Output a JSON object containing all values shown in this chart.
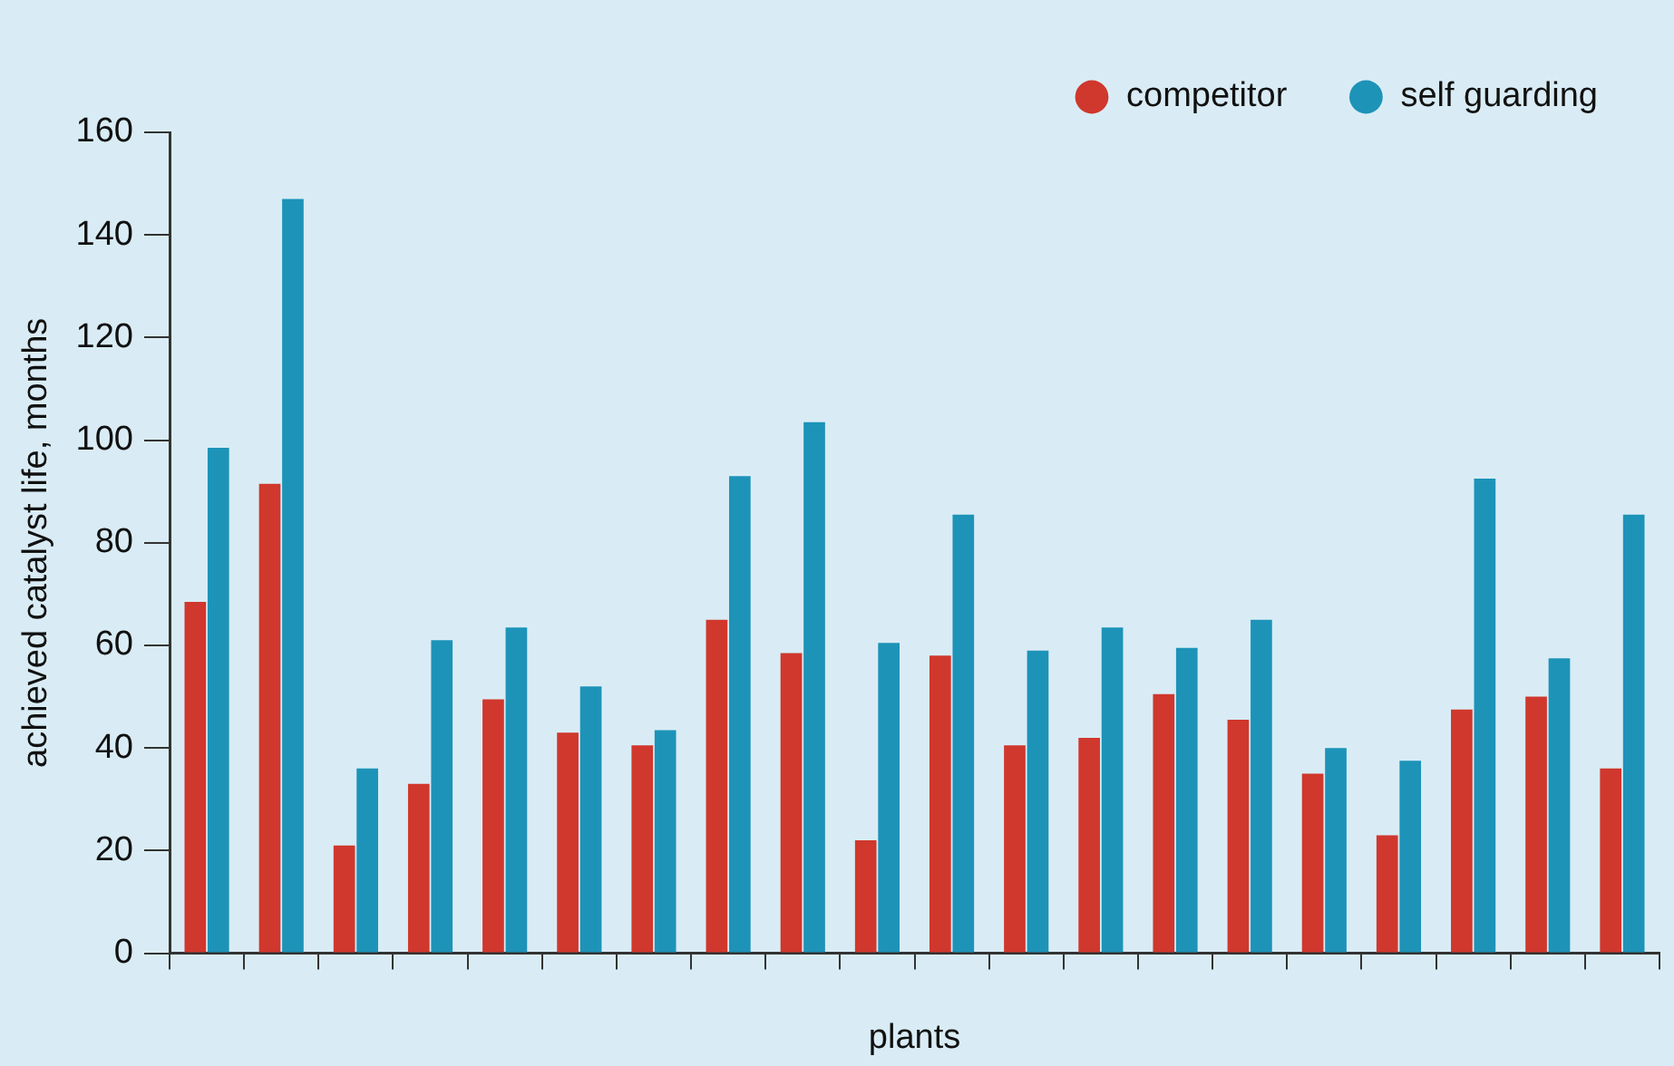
{
  "chart_data": {
    "type": "bar",
    "xlabel": "plants",
    "ylabel": "achieved catalyst life, months",
    "categories": [
      null,
      null,
      null,
      null,
      null,
      null,
      null,
      null,
      null,
      null,
      null,
      null,
      null,
      null,
      null,
      null,
      null,
      null,
      null,
      null
    ],
    "series": [
      {
        "name": "competitor",
        "color": "#d0372d",
        "values": [
          68.5,
          91.5,
          21,
          33,
          49.5,
          43,
          40.5,
          65,
          58.5,
          22,
          58,
          40.5,
          42,
          50.5,
          45.5,
          35,
          23,
          47.5,
          50,
          36
        ]
      },
      {
        "name": "self guarding",
        "color": "#1d93b8",
        "values": [
          98.5,
          147,
          36,
          61,
          63.5,
          52,
          43.5,
          93,
          103.5,
          60.5,
          85.5,
          59,
          63.5,
          59.5,
          65,
          40,
          37.5,
          92.5,
          57.5,
          85.5
        ]
      }
    ],
    "ylim": [
      0,
      160
    ],
    "yticks": [
      0,
      20,
      40,
      60,
      80,
      100,
      120,
      140,
      160
    ],
    "legend": "top right"
  }
}
